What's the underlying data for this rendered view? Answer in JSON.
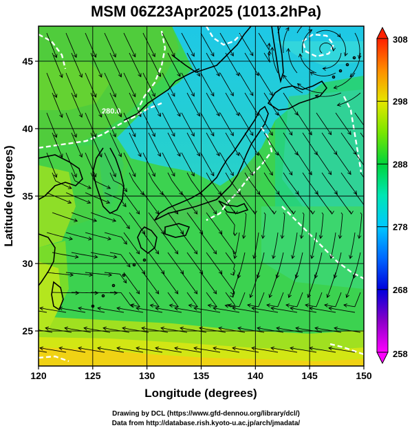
{
  "title": "MSM 06Z23Apr2025 (1013.2hPa)",
  "axes": {
    "x_label": "Longitude (degrees)",
    "y_label": "Latitude  (degrees)",
    "x_ticks": [
      "120",
      "125",
      "130",
      "135",
      "140",
      "145",
      "150"
    ],
    "y_ticks": [
      "25",
      "30",
      "35",
      "40",
      "45"
    ]
  },
  "colorbar": {
    "ticks": [
      "308",
      "298",
      "288",
      "278",
      "268",
      "258"
    ],
    "min": 258,
    "max": 308
  },
  "contour_label": "280.0",
  "map_extent": {
    "lon": [
      120,
      150
    ],
    "lat": [
      22.4,
      47.6
    ]
  },
  "credits": {
    "line1": "Drawing by DCL (https://www.gfd-dennou.org/library/dcl/)",
    "line2": "Data from http://database.rish.kyoto-u.ac.jp/arch/jmadata/"
  }
}
